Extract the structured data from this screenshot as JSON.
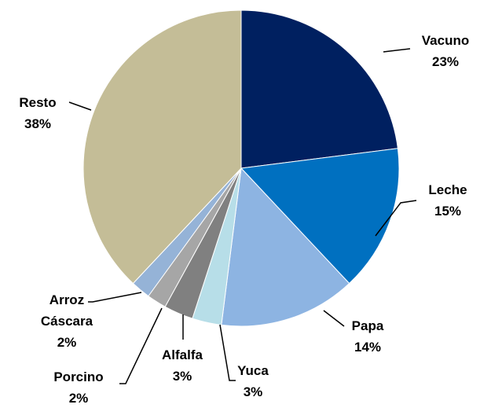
{
  "chart_data": {
    "type": "pie",
    "categories": [
      "Vacuno",
      "Leche",
      "Papa",
      "Yuca",
      "Alfalfa",
      "Porcino",
      "Arroz Cáscara",
      "Resto"
    ],
    "values": [
      23,
      15,
      14,
      3,
      3,
      2,
      2,
      38
    ],
    "value_labels": [
      "23%",
      "15%",
      "14%",
      "3%",
      "3%",
      "2%",
      "2%",
      "38%"
    ],
    "colors": [
      "#002060",
      "#0070c0",
      "#8db4e2",
      "#b7dee8",
      "#808080",
      "#a6a6a6",
      "#95b3d7",
      "#c4bd97"
    ]
  }
}
